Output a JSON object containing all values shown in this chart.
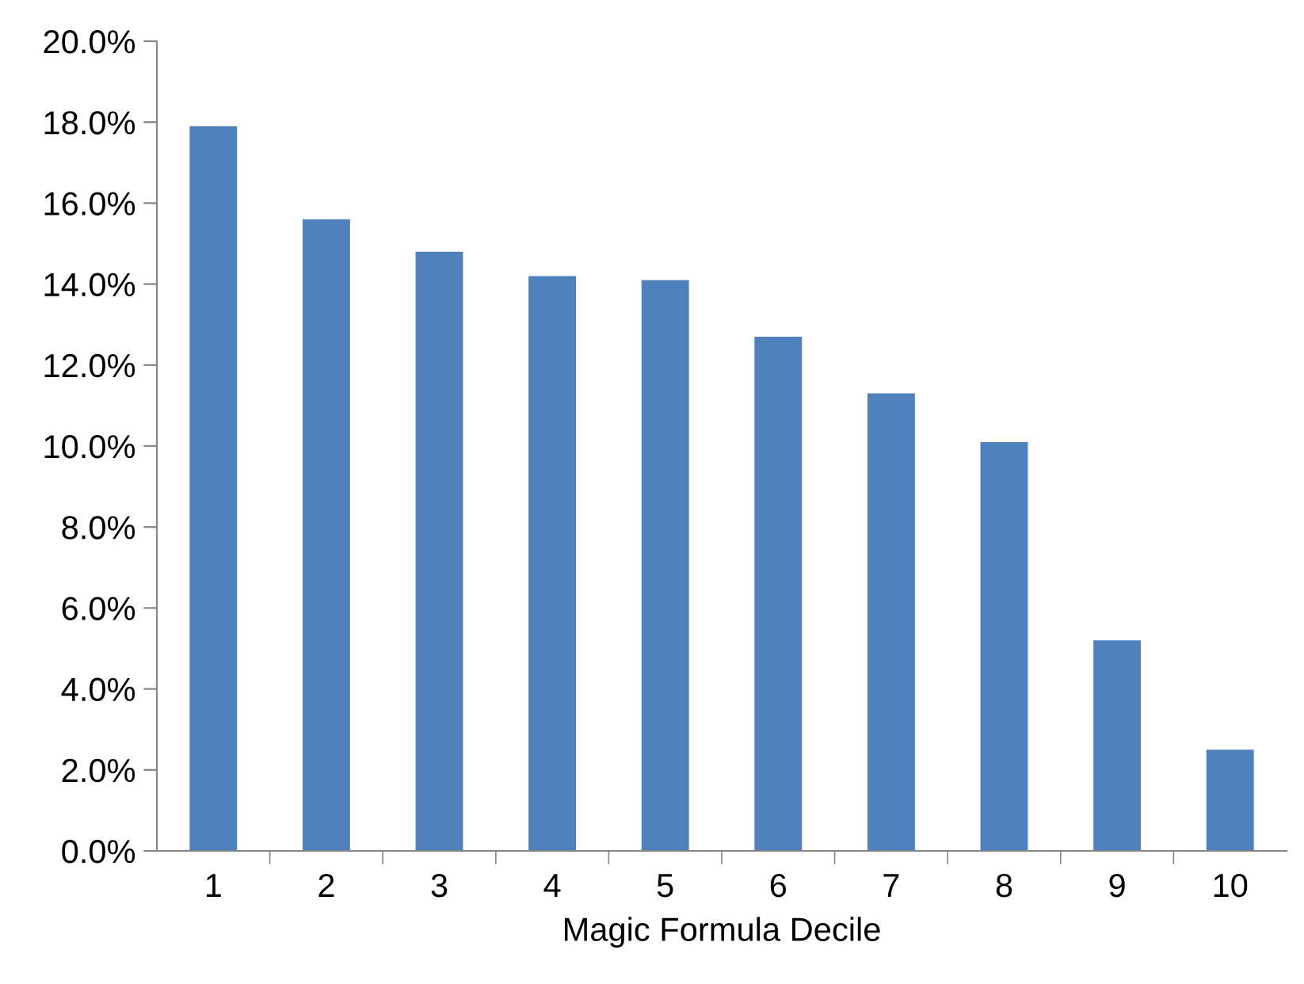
{
  "chart_data": {
    "type": "bar",
    "xlabel": "Magic Formula Decile",
    "categories": [
      "1",
      "2",
      "3",
      "4",
      "5",
      "6",
      "7",
      "8",
      "9",
      "10"
    ],
    "values": [
      17.9,
      15.6,
      14.8,
      14.2,
      14.1,
      12.7,
      11.3,
      10.1,
      5.2,
      2.5
    ],
    "color": "#4f81bd",
    "ylim": [
      0,
      20
    ],
    "yticks": [
      {
        "value": 0,
        "label": "0.0%"
      },
      {
        "value": 2,
        "label": "2.0%"
      },
      {
        "value": 4,
        "label": "4.0%"
      },
      {
        "value": 6,
        "label": "6.0%"
      },
      {
        "value": 8,
        "label": "8.0%"
      },
      {
        "value": 10,
        "label": "10.0%"
      },
      {
        "value": 12,
        "label": "12.0%"
      },
      {
        "value": 14,
        "label": "14.0%"
      },
      {
        "value": 16,
        "label": "16.0%"
      },
      {
        "value": 18,
        "label": "18.0%"
      },
      {
        "value": 20,
        "label": "20.0%"
      }
    ],
    "grid": false
  }
}
